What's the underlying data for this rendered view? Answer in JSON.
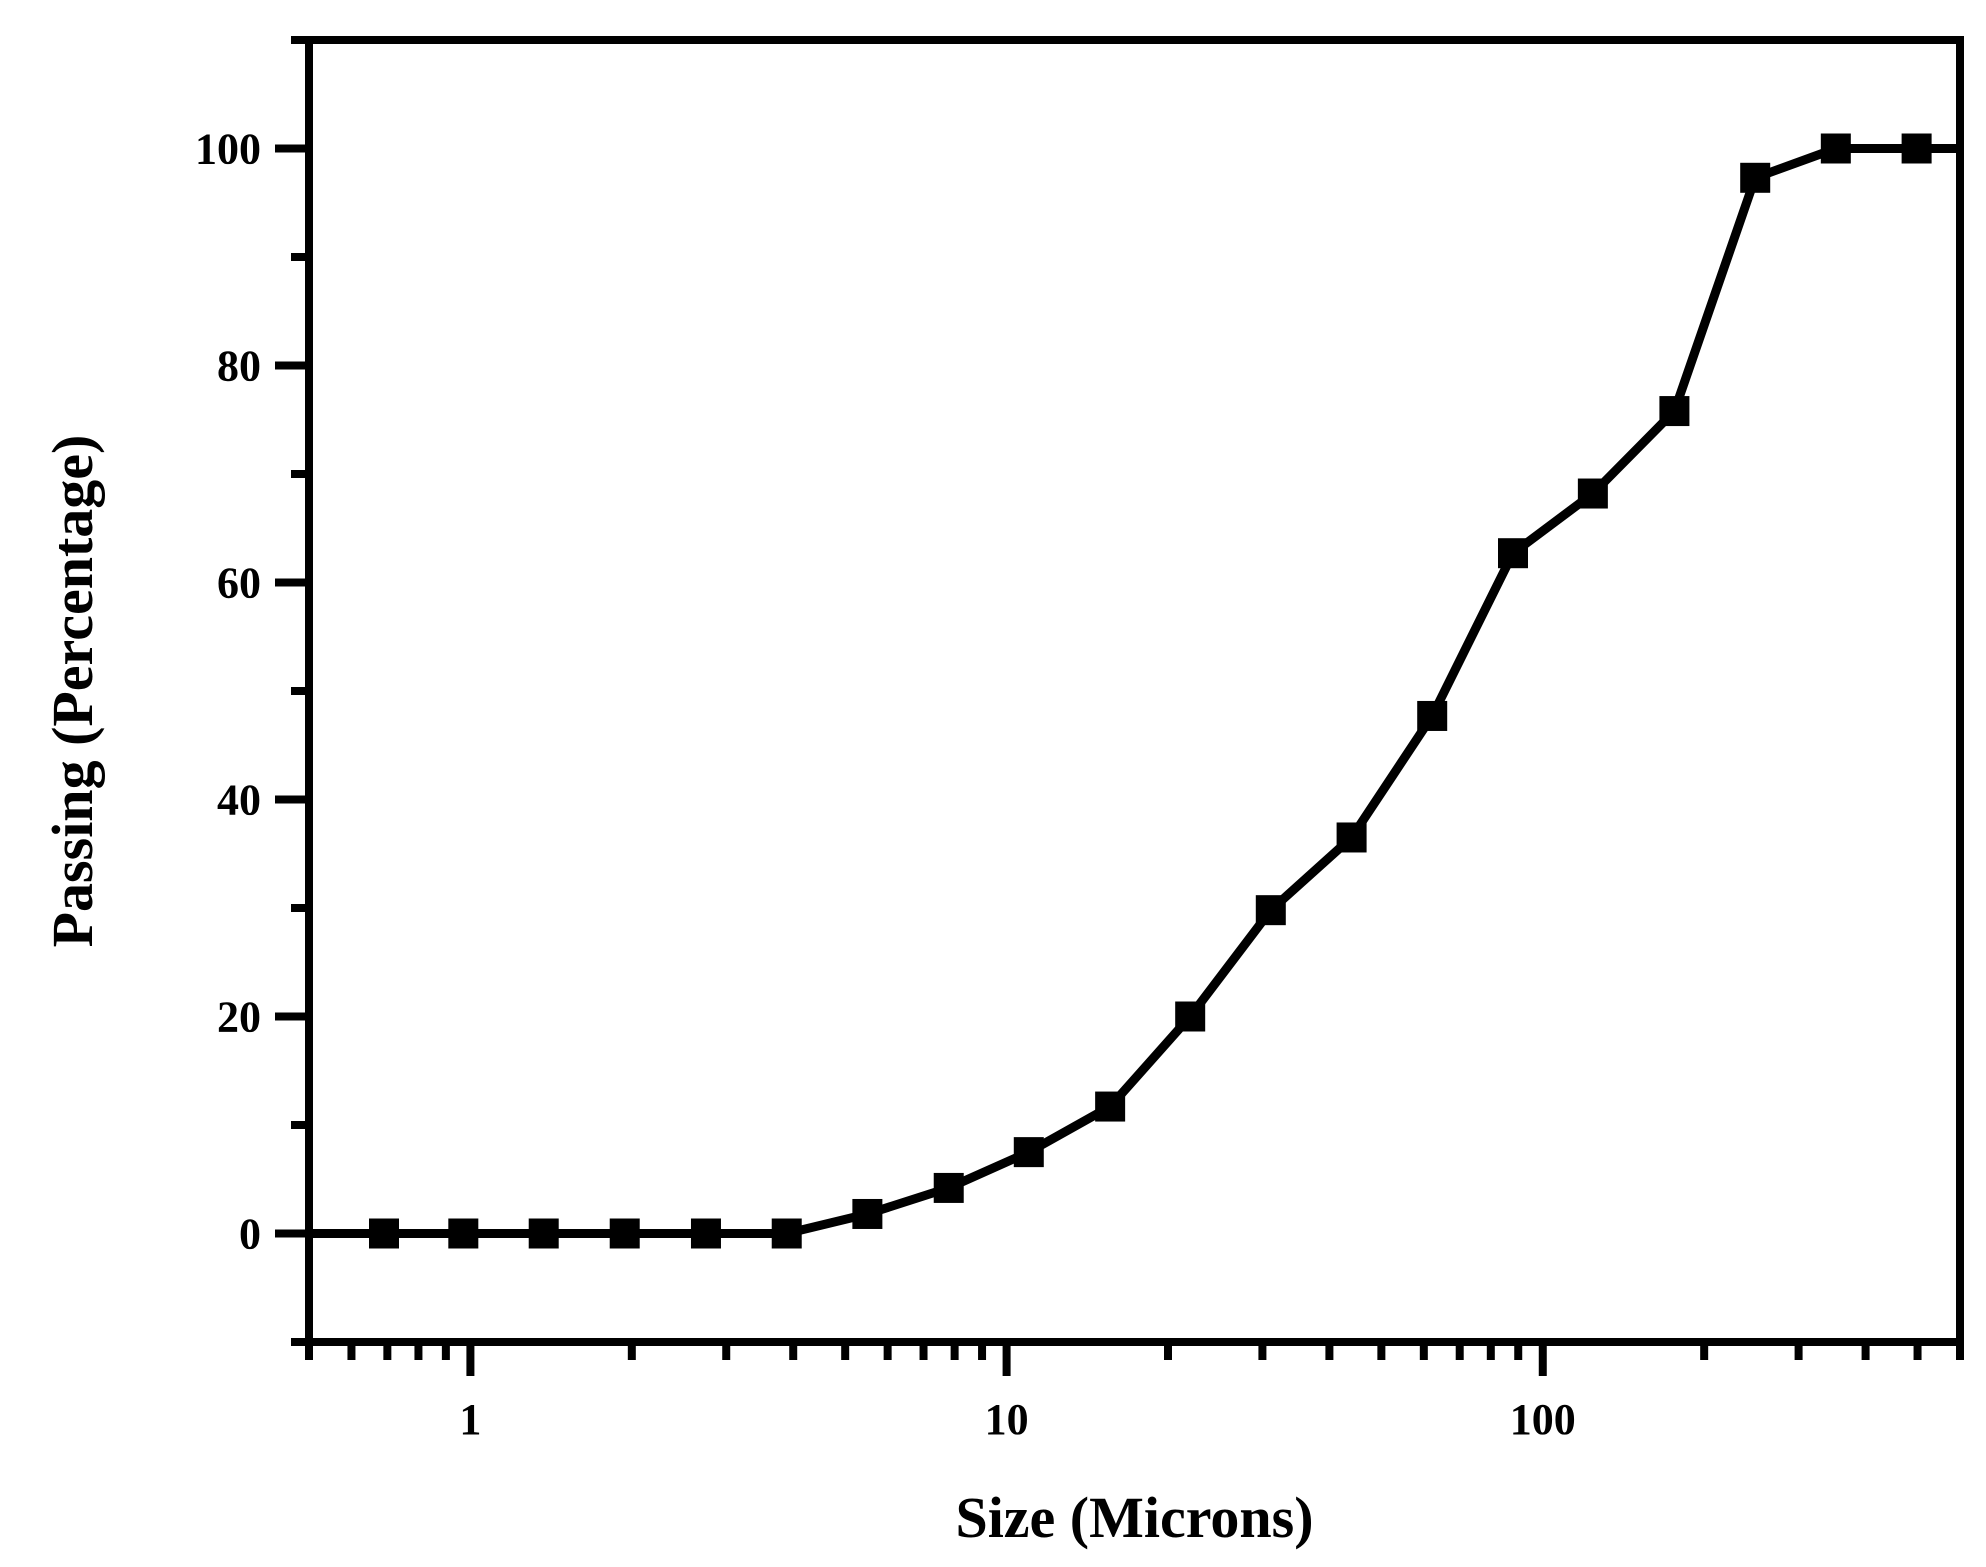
{
  "chart_data": {
    "type": "line",
    "title": "",
    "xlabel": "Size (Microns)",
    "ylabel": "Passing (Percentage)",
    "x_scale": "log",
    "xlim": [
      0.5,
      600
    ],
    "ylim": [
      -10,
      110
    ],
    "x_ticks": [
      {
        "value": 1,
        "label": "1"
      },
      {
        "value": 10,
        "label": "10"
      },
      {
        "value": 100,
        "label": "100"
      }
    ],
    "y_ticks": [
      {
        "value": 0,
        "label": "0"
      },
      {
        "value": 20,
        "label": "20"
      },
      {
        "value": 40,
        "label": "40"
      },
      {
        "value": 60,
        "label": "60"
      },
      {
        "value": 80,
        "label": "80"
      },
      {
        "value": 100,
        "label": "100"
      }
    ],
    "grid": false,
    "legend": "none",
    "line_color": "#000000",
    "marker": "square",
    "series": [
      {
        "x": [
          0.5,
          0.69,
          0.97,
          1.37,
          1.94,
          2.75,
          3.89,
          5.5,
          7.8,
          11.0,
          15.6,
          22.0,
          31.1,
          44.0,
          62.2,
          88.0,
          124.0,
          176.0,
          249.0,
          352.0,
          498.0,
          600.0
        ],
        "y": [
          0,
          0,
          0,
          0,
          0,
          0,
          0,
          1.8,
          4.2,
          7.5,
          11.7,
          20.0,
          29.8,
          36.5,
          47.7,
          62.7,
          68.2,
          75.8,
          97.3,
          100,
          100,
          100
        ],
        "markers": [
          false,
          true,
          true,
          true,
          true,
          true,
          true,
          true,
          true,
          true,
          true,
          true,
          true,
          true,
          true,
          true,
          true,
          true,
          true,
          true,
          true,
          false
        ]
      }
    ]
  }
}
